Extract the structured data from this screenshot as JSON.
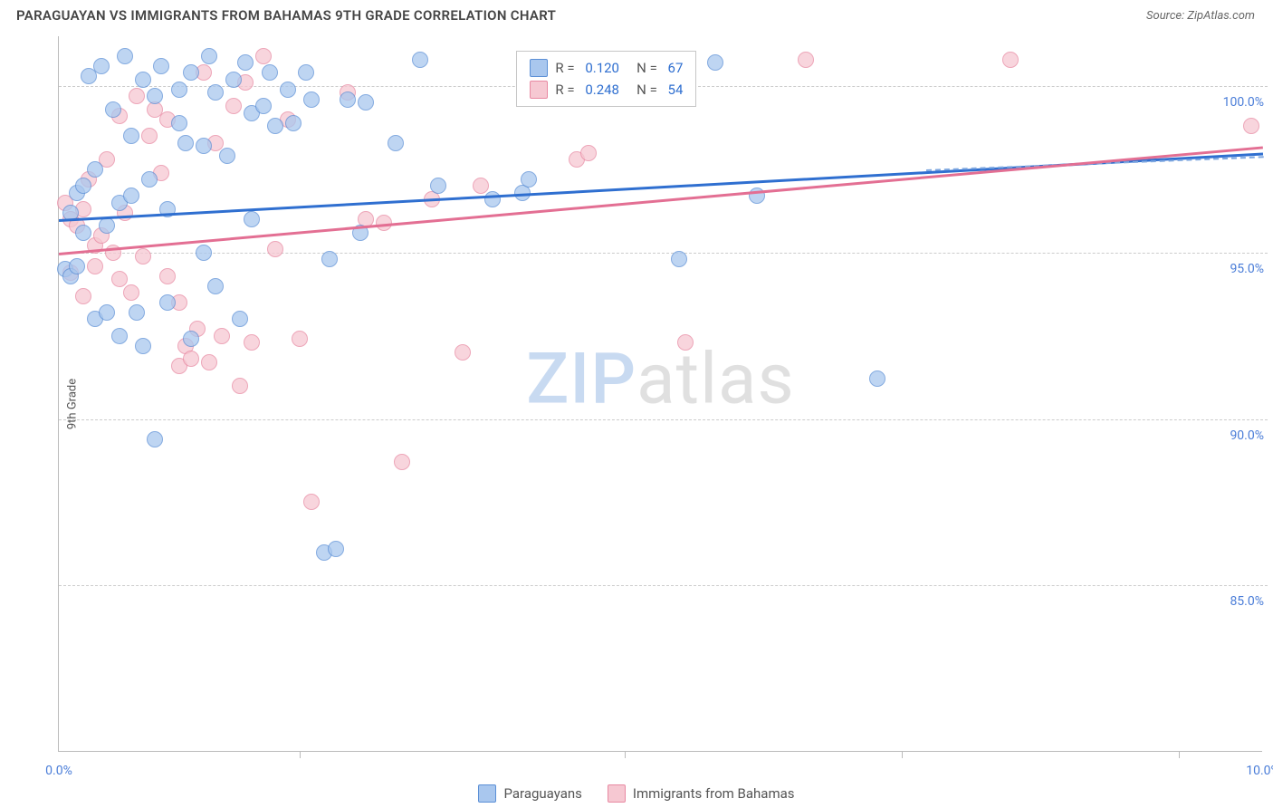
{
  "header": {
    "title": "PARAGUAYAN VS IMMIGRANTS FROM BAHAMAS 9TH GRADE CORRELATION CHART",
    "source": "Source: ZipAtlas.com"
  },
  "chart": {
    "type": "scatter",
    "ylabel": "9th Grade",
    "background_color": "#ffffff",
    "grid_color": "#cccccc",
    "axis_color": "#bbbbbb",
    "tick_label_color": "#4a7dd8",
    "label_fontsize": 13,
    "tick_fontsize": 14,
    "point_radius": 9,
    "point_opacity": 0.75,
    "xlim": [
      0.0,
      10.0
    ],
    "ylim": [
      80.0,
      101.5
    ],
    "xticks": [
      0.0,
      10.0
    ],
    "xtick_labels": [
      "0.0%",
      "10.0%"
    ],
    "xtick_minor": [
      2.0,
      4.7,
      7.0,
      9.3
    ],
    "yticks": [
      85.0,
      90.0,
      95.0,
      100.0
    ],
    "ytick_labels": [
      "85.0%",
      "90.0%",
      "95.0%",
      "100.0%"
    ],
    "series": {
      "paraguayans": {
        "label": "Paraguayans",
        "fill_color": "#a9c7ee",
        "stroke_color": "#5b8fd6",
        "trend_color": "#2f6fd0",
        "R": "0.120",
        "N": "67",
        "trend": {
          "x1": 0.0,
          "y1": 96.0,
          "x2": 10.0,
          "y2": 98.0
        },
        "trend_dash": {
          "x1": 7.2,
          "y1": 97.5,
          "x2": 10.0,
          "y2": 97.9
        },
        "points": [
          [
            0.05,
            94.5
          ],
          [
            0.1,
            94.3
          ],
          [
            0.1,
            96.2
          ],
          [
            0.15,
            94.6
          ],
          [
            0.15,
            96.8
          ],
          [
            0.2,
            95.6
          ],
          [
            0.2,
            97.0
          ],
          [
            0.25,
            100.3
          ],
          [
            0.3,
            97.5
          ],
          [
            0.3,
            93.0
          ],
          [
            0.35,
            100.6
          ],
          [
            0.4,
            93.2
          ],
          [
            0.4,
            95.8
          ],
          [
            0.45,
            99.3
          ],
          [
            0.5,
            92.5
          ],
          [
            0.5,
            96.5
          ],
          [
            0.55,
            100.9
          ],
          [
            0.6,
            96.7
          ],
          [
            0.6,
            98.5
          ],
          [
            0.65,
            93.2
          ],
          [
            0.7,
            100.2
          ],
          [
            0.7,
            92.2
          ],
          [
            0.75,
            97.2
          ],
          [
            0.8,
            89.4
          ],
          [
            0.8,
            99.7
          ],
          [
            0.85,
            100.6
          ],
          [
            0.9,
            93.5
          ],
          [
            0.9,
            96.3
          ],
          [
            1.0,
            98.9
          ],
          [
            1.0,
            99.9
          ],
          [
            1.05,
            98.3
          ],
          [
            1.1,
            92.4
          ],
          [
            1.1,
            100.4
          ],
          [
            1.2,
            95.0
          ],
          [
            1.2,
            98.2
          ],
          [
            1.25,
            100.9
          ],
          [
            1.3,
            99.8
          ],
          [
            1.3,
            94.0
          ],
          [
            1.4,
            97.9
          ],
          [
            1.45,
            100.2
          ],
          [
            1.5,
            93.0
          ],
          [
            1.55,
            100.7
          ],
          [
            1.6,
            99.2
          ],
          [
            1.6,
            96.0
          ],
          [
            1.7,
            99.4
          ],
          [
            1.75,
            100.4
          ],
          [
            1.8,
            98.8
          ],
          [
            1.9,
            99.9
          ],
          [
            1.95,
            98.9
          ],
          [
            2.05,
            100.4
          ],
          [
            2.1,
            99.6
          ],
          [
            2.2,
            86.0
          ],
          [
            2.25,
            94.8
          ],
          [
            2.3,
            86.1
          ],
          [
            2.4,
            99.6
          ],
          [
            2.5,
            95.6
          ],
          [
            2.55,
            99.5
          ],
          [
            2.8,
            98.3
          ],
          [
            3.0,
            100.8
          ],
          [
            3.15,
            97.0
          ],
          [
            3.6,
            96.6
          ],
          [
            3.85,
            96.8
          ],
          [
            3.9,
            97.2
          ],
          [
            5.15,
            94.8
          ],
          [
            5.45,
            100.7
          ],
          [
            5.8,
            96.7
          ],
          [
            6.8,
            91.2
          ]
        ]
      },
      "bahamas": {
        "label": "Immigrants from Bahamas",
        "fill_color": "#f6c8d2",
        "stroke_color": "#e889a2",
        "trend_color": "#e36f93",
        "R": "0.248",
        "N": "54",
        "trend": {
          "x1": 0.0,
          "y1": 95.0,
          "x2": 10.0,
          "y2": 98.2
        },
        "points": [
          [
            0.05,
            96.5
          ],
          [
            0.1,
            94.4
          ],
          [
            0.1,
            96.0
          ],
          [
            0.15,
            95.8
          ],
          [
            0.2,
            93.7
          ],
          [
            0.2,
            96.3
          ],
          [
            0.25,
            97.2
          ],
          [
            0.3,
            95.2
          ],
          [
            0.3,
            94.6
          ],
          [
            0.35,
            95.5
          ],
          [
            0.4,
            97.8
          ],
          [
            0.45,
            95.0
          ],
          [
            0.5,
            94.2
          ],
          [
            0.5,
            99.1
          ],
          [
            0.55,
            96.2
          ],
          [
            0.6,
            93.8
          ],
          [
            0.65,
            99.7
          ],
          [
            0.7,
            94.9
          ],
          [
            0.75,
            98.5
          ],
          [
            0.8,
            99.3
          ],
          [
            0.85,
            97.4
          ],
          [
            0.9,
            94.3
          ],
          [
            0.9,
            99.0
          ],
          [
            1.0,
            91.6
          ],
          [
            1.0,
            93.5
          ],
          [
            1.05,
            92.2
          ],
          [
            1.1,
            91.8
          ],
          [
            1.15,
            92.7
          ],
          [
            1.2,
            100.4
          ],
          [
            1.25,
            91.7
          ],
          [
            1.3,
            98.3
          ],
          [
            1.35,
            92.5
          ],
          [
            1.45,
            99.4
          ],
          [
            1.5,
            91.0
          ],
          [
            1.55,
            100.1
          ],
          [
            1.6,
            92.3
          ],
          [
            1.7,
            100.9
          ],
          [
            1.8,
            95.1
          ],
          [
            1.9,
            99.0
          ],
          [
            2.0,
            92.4
          ],
          [
            2.1,
            87.5
          ],
          [
            2.4,
            99.8
          ],
          [
            2.55,
            96.0
          ],
          [
            2.7,
            95.9
          ],
          [
            2.85,
            88.7
          ],
          [
            3.1,
            96.6
          ],
          [
            3.35,
            92.0
          ],
          [
            3.5,
            97.0
          ],
          [
            4.3,
            97.8
          ],
          [
            4.4,
            98.0
          ],
          [
            5.2,
            92.3
          ],
          [
            6.2,
            100.8
          ],
          [
            7.9,
            100.8
          ],
          [
            9.9,
            98.8
          ]
        ]
      }
    },
    "stats_legend": {
      "left_pct": 38,
      "top_pct": 2
    },
    "watermark": {
      "text_zip": "ZIP",
      "text_atlas": "atlas"
    }
  }
}
